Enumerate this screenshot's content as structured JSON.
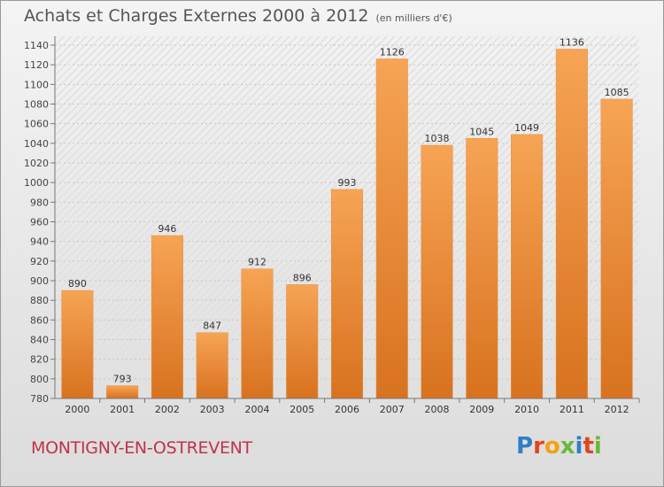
{
  "header": {
    "title": "Achats et Charges Externes 2000 à 2012",
    "subtitle": "(en milliers d'€)"
  },
  "footer": {
    "commune": "MONTIGNY-EN-OSTREVENT",
    "logo_text": "Proxiti"
  },
  "chart_data": {
    "type": "bar",
    "categories": [
      "2000",
      "2001",
      "2002",
      "2003",
      "2004",
      "2005",
      "2006",
      "2007",
      "2008",
      "2009",
      "2010",
      "2011",
      "2012"
    ],
    "values": [
      890,
      793,
      946,
      847,
      912,
      896,
      993,
      1126,
      1038,
      1045,
      1049,
      1136,
      1085
    ],
    "title": "Achats et Charges Externes 2000 à 2012",
    "subtitle": "(en milliers d'€)",
    "ylim": [
      780,
      1140
    ],
    "yticks": [
      780,
      800,
      820,
      840,
      860,
      880,
      900,
      920,
      940,
      960,
      980,
      1000,
      1020,
      1040,
      1060,
      1080,
      1100,
      1120,
      1140
    ],
    "grid": true,
    "data_labels": true,
    "bar_color": "#f0903a",
    "bar_color_dark": "#d97420"
  }
}
